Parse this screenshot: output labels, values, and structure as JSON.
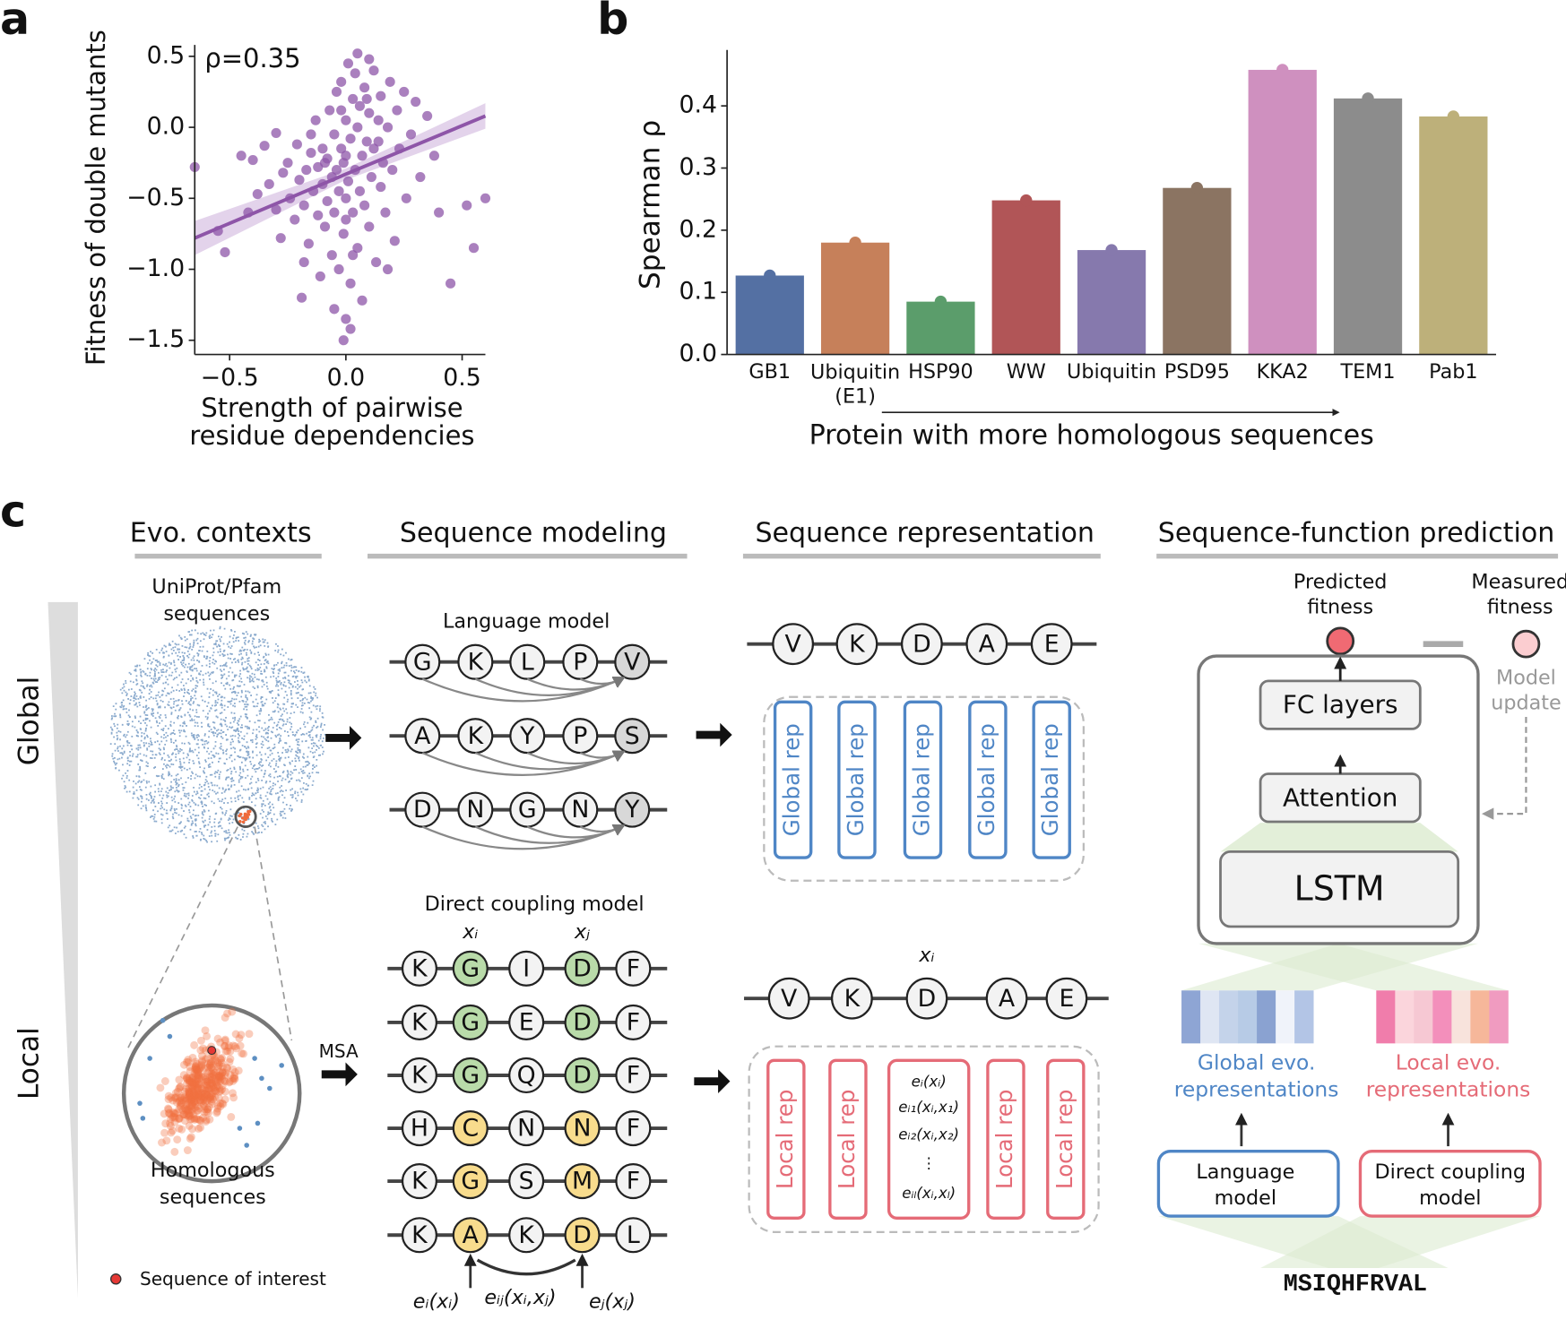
{
  "panel_labels": [
    "a",
    "b",
    "c"
  ],
  "chart_data": [
    {
      "type": "scatter",
      "xlabel": "Strength of pairwise\nresidue dependencies",
      "ylabel": "Fitness of double mutants",
      "annotation": "ρ=0.35",
      "color": "#8e55a8",
      "x": [
        -0.65,
        -0.55,
        -0.52,
        -0.45,
        -0.42,
        -0.4,
        -0.38,
        -0.35,
        -0.33,
        -0.3,
        -0.3,
        -0.28,
        -0.27,
        -0.25,
        -0.24,
        -0.22,
        -0.21,
        -0.2,
        -0.19,
        -0.18,
        -0.17,
        -0.16,
        -0.15,
        -0.14,
        -0.13,
        -0.12,
        -0.12,
        -0.11,
        -0.1,
        -0.1,
        -0.09,
        -0.08,
        -0.08,
        -0.07,
        -0.06,
        -0.06,
        -0.05,
        -0.05,
        -0.04,
        -0.04,
        -0.03,
        -0.03,
        -0.02,
        -0.02,
        -0.01,
        -0.01,
        0,
        0,
        0,
        0,
        0.01,
        0.01,
        0.02,
        0.02,
        0.03,
        0.03,
        0.04,
        0.04,
        0.05,
        0.05,
        0.06,
        0.06,
        0.07,
        0.07,
        0.08,
        0.08,
        0.09,
        0.1,
        0.1,
        0.11,
        0.12,
        0.12,
        0.13,
        0.14,
        0.15,
        0.15,
        0.16,
        0.17,
        0.18,
        0.19,
        0.2,
        0.21,
        0.22,
        0.23,
        0.25,
        0.26,
        0.28,
        0.3,
        0.32,
        0.35,
        0.38,
        0.4,
        0.45,
        0.52,
        0.55,
        0.6,
        -0.01,
        0.02,
        -0.05,
        0.1,
        -0.15,
        0.05,
        -0.09,
        0,
        0.03,
        -0.18,
        0.18,
        0.14,
        -0.02,
        0.09
      ],
      "values": [
        -0.28,
        -0.73,
        -0.88,
        -0.2,
        -0.6,
        -0.23,
        -0.47,
        -0.13,
        -0.4,
        -0.58,
        -0.04,
        -0.78,
        -0.32,
        -0.25,
        -0.5,
        -0.65,
        -0.12,
        -0.37,
        -1.2,
        -0.55,
        -0.3,
        -0.82,
        -0.18,
        -0.45,
        0.05,
        -0.62,
        -0.28,
        -1.05,
        -0.4,
        -0.15,
        -0.7,
        -0.22,
        -0.52,
        0.12,
        -0.35,
        -0.9,
        -0.05,
        -0.6,
        -0.3,
        0.25,
        -1.0,
        -0.45,
        -0.15,
        0.32,
        -0.75,
        -0.25,
        -1.35,
        -0.5,
        0.05,
        -0.2,
        0.45,
        -0.38,
        -1.1,
        -0.08,
        0.2,
        -0.6,
        -0.3,
        0.38,
        -0.85,
        0,
        -0.45,
        0.15,
        -1.22,
        -0.2,
        0.28,
        -0.55,
        -0.1,
        0.1,
        -0.7,
        -0.35,
        0.4,
        -0.15,
        -0.95,
        0.05,
        -0.42,
        0.22,
        -0.25,
        -0.6,
        0,
        0.32,
        -0.3,
        -0.8,
        0.12,
        -0.15,
        0.25,
        -0.5,
        -0.05,
        0.18,
        -0.35,
        0.08,
        -0.2,
        -0.6,
        -1.1,
        -0.55,
        -0.85,
        -0.5,
        -1.5,
        -1.42,
        -1.28,
        0.48,
        -0.05,
        0.52,
        -0.25,
        -0.65,
        -0.9,
        -0.95,
        -1.0,
        -0.1,
        0.12,
        0.2
      ],
      "fit": {
        "x": [
          -0.65,
          0,
          0.6
        ],
        "y": [
          -0.78,
          -0.33,
          0.08
        ],
        "ci_lower": [
          -0.9,
          -0.37,
          -0.01
        ],
        "ci_upper": [
          -0.66,
          -0.29,
          0.17
        ],
        "band_color": "#dcc8e6"
      },
      "xlim": [
        -0.65,
        0.6
      ],
      "ylim": [
        -1.6,
        0.58
      ],
      "xticks": [
        {
          "value": -0.5,
          "label": "−0.5"
        },
        {
          "value": 0,
          "label": "0.0"
        },
        0.5
      ],
      "yticks": [
        0.5,
        {
          "value": 0,
          "label": "0.0"
        },
        {
          "value": -0.5,
          "label": "−0.5"
        },
        {
          "value": -1,
          "label": "−1.0"
        },
        {
          "value": -1.5,
          "label": "−1.5"
        }
      ]
    },
    {
      "type": "bar",
      "ylabel": "Spearman ρ",
      "xlabel": "Protein with more homologous sequences",
      "categories": [
        "GB1",
        "Ubiquitin\n(E1)",
        "HSP90",
        "WW",
        "Ubiquitin",
        "PSD95",
        "KKA2",
        "TEM1",
        "Pab1"
      ],
      "values": [
        0.127,
        0.18,
        0.085,
        0.248,
        0.168,
        0.268,
        0.458,
        0.412,
        0.383
      ],
      "colors": [
        "#5470a3",
        "#c6805a",
        "#5b9d6b",
        "#b15557",
        "#8679ad",
        "#8b7462",
        "#cf90bf",
        "#8c8c8c",
        "#bdb07a"
      ],
      "ylim": [
        0,
        0.49
      ],
      "yticks": [
        {
          "value": 0,
          "label": "0.0"
        },
        0.1,
        0.2,
        0.3,
        0.4
      ]
    }
  ],
  "diagram": {
    "headers": [
      "Evo. contexts",
      "Sequence modeling",
      "Sequence representation",
      "Sequence-function prediction"
    ],
    "scale_labels": [
      "Global",
      "Local"
    ],
    "uniprot_label": "UniProt/Pfam\nsequences",
    "homologous_label": "Homologous\nsequences",
    "legend_soi": "Sequence of interest",
    "msa_label": "MSA",
    "lm_title": "Language model",
    "lm_sequences": [
      [
        "G",
        "K",
        "L",
        "P",
        "V"
      ],
      [
        "A",
        "K",
        "Y",
        "P",
        "S"
      ],
      [
        "D",
        "N",
        "G",
        "N",
        "Y"
      ]
    ],
    "dcm_title": "Direct coupling model",
    "position_labels": [
      "xᵢ",
      "xⱼ"
    ],
    "msa_sequences": [
      [
        "K",
        "G",
        "I",
        "D",
        "F"
      ],
      [
        "K",
        "G",
        "E",
        "D",
        "F"
      ],
      [
        "K",
        "G",
        "Q",
        "D",
        "F"
      ],
      [
        "H",
        "C",
        "N",
        "N",
        "F"
      ],
      [
        "K",
        "G",
        "S",
        "M",
        "F"
      ],
      [
        "K",
        "A",
        "K",
        "D",
        "L"
      ]
    ],
    "emission_labels": [
      "eᵢ(xᵢ)",
      "eᵢⱼ(xᵢ,xⱼ)",
      "eⱼ(xⱼ)"
    ],
    "global_sequence": [
      "V",
      "K",
      "D",
      "A",
      "E"
    ],
    "global_reps": [
      "Global rep",
      "Global rep",
      "Global rep",
      "Global rep",
      "Global rep"
    ],
    "local_sequence": [
      "V",
      "K",
      "D",
      "A",
      "E"
    ],
    "local_position_label": "xᵢ",
    "local_reps": [
      "Local rep",
      "Local rep",
      "Local rep",
      "Local rep"
    ],
    "pairwise_terms": [
      "eᵢ(xᵢ)",
      "eᵢ₁(xᵢ,x₁)",
      "eᵢ₂(xᵢ,x₂)",
      "⋮",
      "eᵢₗ(xᵢ,xₗ)"
    ],
    "predicted_fitness": "Predicted\nfitness",
    "measured_fitness": "Measured\nfitness",
    "model_update": "Model\nupdate",
    "fc_layers": "FC layers",
    "attention": "Attention",
    "lstm": "LSTM",
    "global_evo": "Global evo.\nrepresentations",
    "local_evo": "Local evo.\nrepresentations",
    "language_model": "Language\nmodel",
    "dcm": "Direct coupling\nmodel",
    "input_sequence": "MSIQHFRVAL"
  }
}
